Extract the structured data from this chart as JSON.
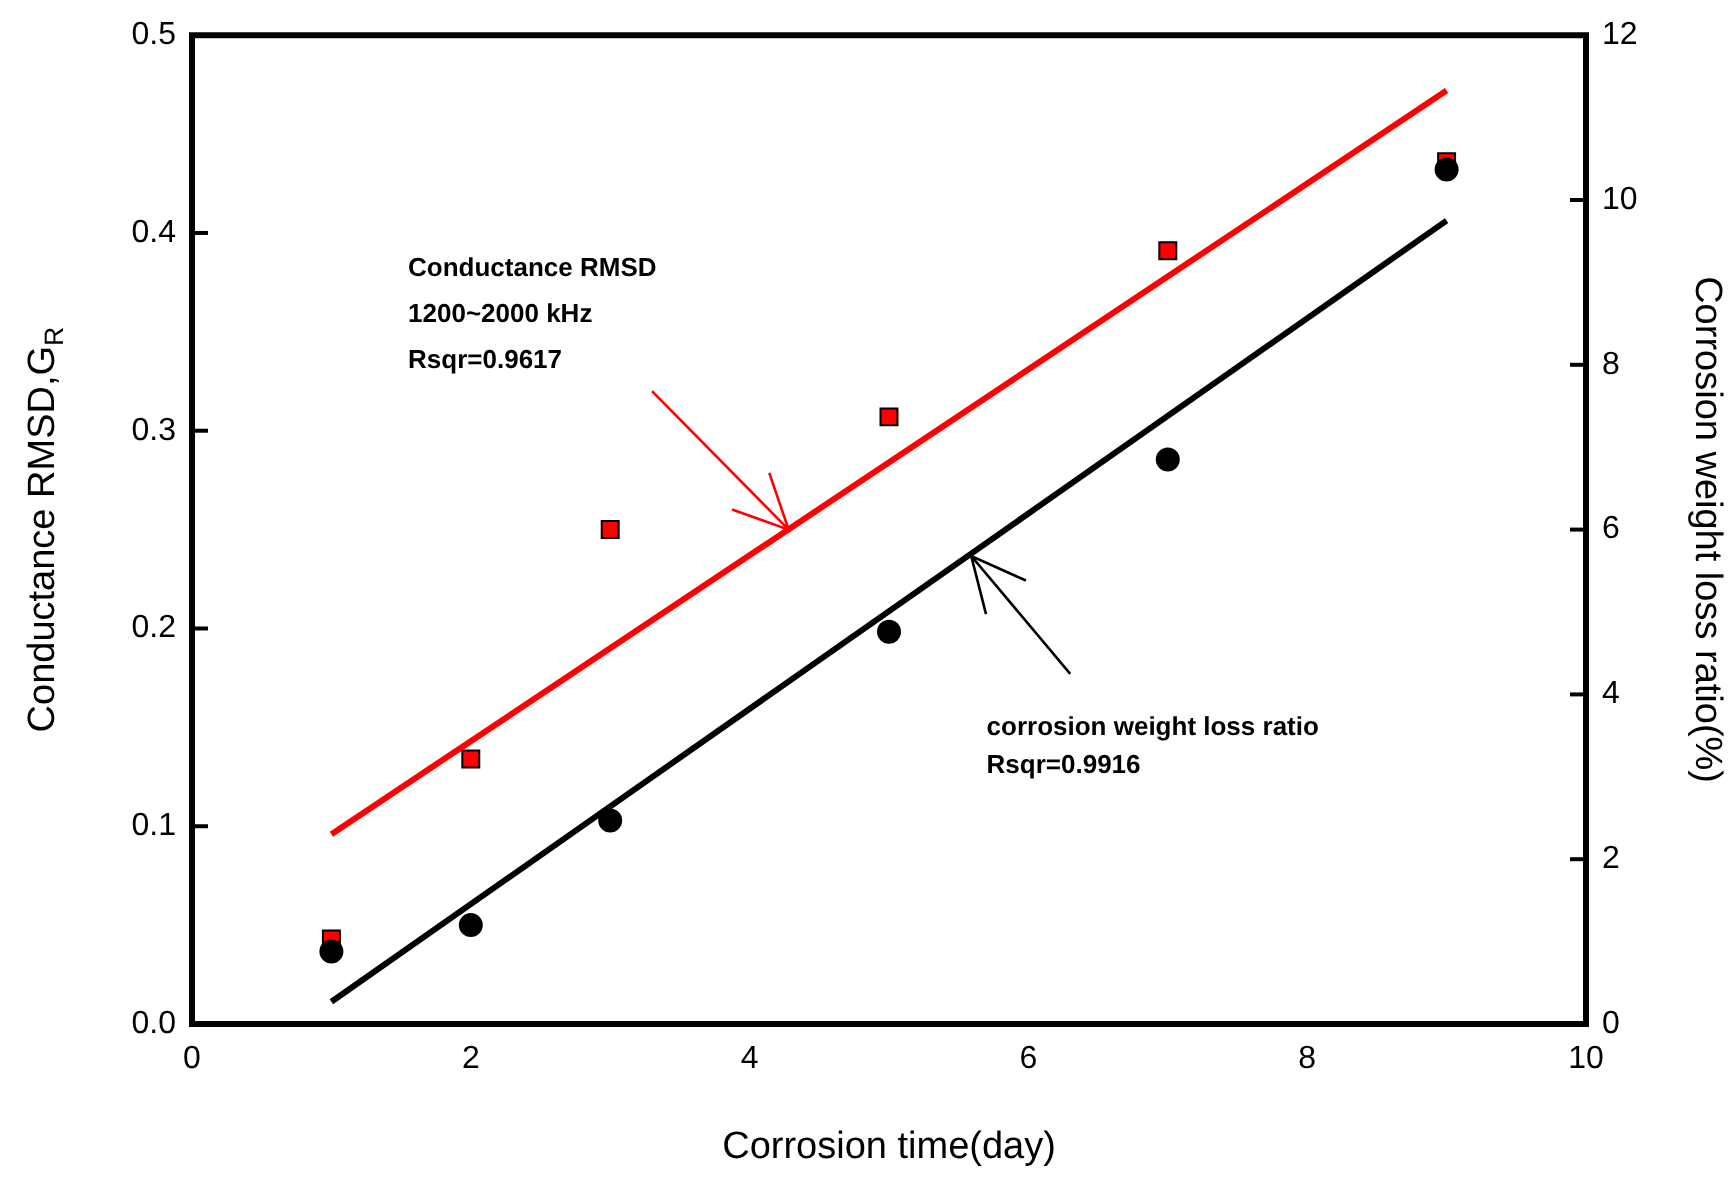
{
  "chart_data": {
    "type": "scatter",
    "xlabel": "Corrosion time(day)",
    "ylabel": "Conductance RMSD,G$_{R}$",
    "y2label": "Corrosion weight loss ratio(%)",
    "xlim": [
      0,
      10
    ],
    "xticks": [
      0,
      2,
      4,
      6,
      8,
      10
    ],
    "ylim": [
      0,
      0.5
    ],
    "yticks": [
      {
        "value": 0,
        "label": "0.0"
      },
      0.1,
      0.2,
      0.3,
      0.4,
      0.5
    ],
    "y2lim": [
      0,
      12
    ],
    "y2ticks": [
      0,
      2,
      4,
      6,
      8,
      10,
      12
    ],
    "grid": false,
    "legend": false,
    "series": [
      {
        "type": "scatter",
        "marker": "square",
        "color": "#ff0000",
        "x": [
          1,
          2,
          3,
          5,
          7,
          9
        ],
        "values": [
          0.043,
          0.134,
          0.25,
          0.307,
          0.391,
          0.436
        ]
      },
      {
        "type": "scatter",
        "marker": "circle",
        "color": "#000000",
        "axis": "y2",
        "x": [
          1,
          2,
          3,
          5,
          7,
          9
        ],
        "values": [
          0.88,
          1.2,
          2.47,
          4.76,
          6.85,
          10.37
        ]
      },
      {
        "type": "line",
        "marker": "none",
        "color": "#ff0000",
        "x": [
          1,
          9
        ],
        "values": [
          0.096,
          0.472
        ]
      },
      {
        "type": "line",
        "marker": "none",
        "color": "#000000",
        "axis": "y2",
        "x": [
          1,
          9
        ],
        "values": [
          0.27,
          9.75
        ]
      }
    ],
    "annotations": [
      "Conductance RMSD\n1200~2000 kHz\nRsqr=0.9617",
      "corrosion weight loss ratio\nRsqr=0.9916"
    ]
  }
}
